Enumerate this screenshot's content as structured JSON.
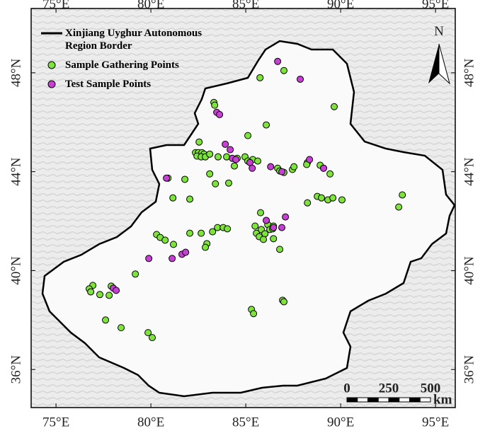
{
  "chart_data": {
    "type": "scatter",
    "border_label": "Xinjiang Uyghur Autonomous Region Border",
    "north_arrow": "N",
    "scale_bar": {
      "ticks": [
        0,
        250,
        500
      ],
      "unit": "km"
    },
    "xlim": [
      73.69,
      96.04
    ],
    "ylim": [
      34.46,
      50.6
    ],
    "xticks": [
      {
        "value": 75,
        "label": "75°E"
      },
      {
        "value": 80,
        "label": "80°E"
      },
      {
        "value": 85,
        "label": "85°E"
      },
      {
        "value": 90,
        "label": "90°E"
      },
      {
        "value": 95,
        "label": "95°E"
      }
    ],
    "yticks": [
      {
        "value": 36,
        "label": "36°N"
      },
      {
        "value": 40,
        "label": "40°N"
      },
      {
        "value": 44,
        "label": "44°N"
      },
      {
        "value": 48,
        "label": "48°N"
      }
    ],
    "series": [
      {
        "name": "Sample Gathering Points",
        "color": "#7ee33a",
        "x": [
          85.75,
          87.01,
          89.66,
          83.32,
          83.36,
          85.11,
          86.08,
          82.54,
          82.35,
          82.5,
          82.69,
          82.8,
          82.43,
          82.65,
          82.87,
          83.1,
          83.54,
          83.99,
          84.55,
          84.96,
          85.37,
          85.63,
          86.68,
          86.79,
          87.01,
          87.46,
          87.54,
          88.25,
          88.21,
          88.92,
          89.1,
          89.44,
          80.9,
          81.79,
          83.1,
          83.4,
          84.1,
          85.11,
          84.4,
          88.77,
          88.99,
          89.33,
          89.59,
          90.07,
          88.25,
          93.25,
          93.06,
          81.16,
          82.05,
          85.78,
          83.51,
          83.81,
          84.03,
          83.25,
          82.05,
          82.65,
          80.3,
          80.49,
          80.75,
          81.19,
          82.95,
          82.87,
          85.49,
          85.56,
          85.82,
          85.71,
          86.16,
          86.27,
          86.46,
          86.01,
          86.42,
          85.93,
          86.46,
          86.79,
          79.18,
          76.94,
          76.75,
          76.83,
          77.31,
          77.8,
          77.91,
          86.94,
          87.01,
          85.3,
          85.41,
          77.61,
          78.43,
          79.85,
          80.07
        ],
        "values": [
          47.8,
          48.09,
          46.63,
          46.8,
          46.69,
          45.46,
          45.89,
          45.2,
          44.77,
          44.77,
          44.77,
          44.71,
          44.63,
          44.6,
          44.6,
          44.71,
          44.6,
          44.6,
          44.54,
          44.6,
          44.49,
          44.43,
          44.14,
          44.03,
          43.97,
          44.09,
          44.2,
          44.37,
          44.29,
          44.26,
          44.14,
          43.91,
          43.74,
          43.69,
          43.91,
          43.51,
          43.54,
          44.43,
          44.23,
          43.0,
          42.94,
          42.86,
          42.94,
          42.86,
          42.74,
          43.06,
          42.57,
          42.94,
          42.89,
          42.34,
          41.74,
          41.74,
          41.69,
          41.57,
          41.51,
          41.51,
          41.46,
          41.34,
          41.23,
          41.06,
          41.09,
          40.94,
          41.8,
          41.51,
          41.66,
          41.37,
          41.86,
          41.66,
          41.8,
          41.49,
          41.69,
          41.26,
          41.29,
          40.86,
          39.86,
          39.4,
          39.26,
          39.14,
          39.03,
          39.0,
          39.37,
          38.8,
          38.74,
          38.43,
          38.26,
          38.0,
          37.69,
          37.49,
          37.29
        ]
      },
      {
        "name": "Test Sample Points",
        "color": "#c83fd6",
        "x": [
          86.68,
          87.87,
          83.47,
          83.62,
          83.92,
          84.18,
          84.29,
          84.48,
          85.22,
          85.34,
          86.31,
          86.9,
          88.36,
          89.1,
          80.82,
          86.08,
          87.09,
          86.46,
          86.9,
          79.89,
          81.12,
          81.64,
          81.83,
          78.02,
          78.17
        ],
        "values": [
          48.46,
          47.74,
          46.4,
          46.31,
          45.11,
          44.89,
          44.54,
          44.49,
          44.37,
          44.14,
          44.2,
          44.0,
          44.49,
          44.14,
          43.74,
          42.03,
          42.17,
          41.74,
          41.74,
          40.49,
          40.49,
          40.66,
          40.74,
          39.29,
          39.2
        ]
      }
    ]
  }
}
